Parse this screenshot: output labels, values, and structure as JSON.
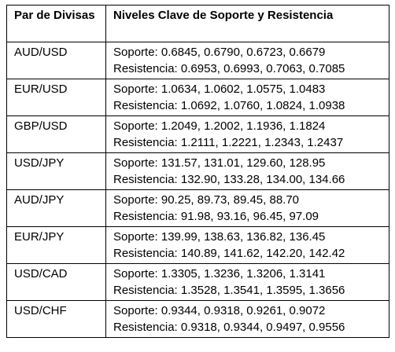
{
  "header": {
    "pair_label": "Par de Divisas",
    "levels_label": "Niveles Clave de Soporte y Resistencia"
  },
  "rows": [
    {
      "pair": "AUD/USD",
      "support": "Soporte: 0.6845, 0.6790, 0.6723, 0.6679",
      "resistance": "Resistencia: 0.6953, 0.6993, 0.7063, 0.7085"
    },
    {
      "pair": "EUR/USD",
      "support": "Soporte: 1.0634, 1.0602, 1.0575, 1.0483",
      "resistance": "Resistencia: 1.0692, 1.0760, 1.0824, 1.0938"
    },
    {
      "pair": "GBP/USD",
      "support": "Soporte: 1.2049, 1.2002, 1.1936, 1.1824",
      "resistance": "Resistencia: 1.2111, 1.2221, 1.2343, 1.2437"
    },
    {
      "pair": "USD/JPY",
      "support": "Soporte: 131.57, 131.01, 129.60, 128.95",
      "resistance": "Resistencia: 132.90, 133.28, 134.00, 134.66"
    },
    {
      "pair": "AUD/JPY",
      "support": "Soporte: 90.25, 89.73, 89.45, 88.70",
      "resistance": "Resistencia: 91.98, 93.16, 96.45, 97.09"
    },
    {
      "pair": "EUR/JPY",
      "support": "Soporte: 139.99, 138.63, 136.82, 136.45",
      "resistance": "Resistencia: 140.89, 141.62, 142.20, 142.42"
    },
    {
      "pair": "USD/CAD",
      "support": "Soporte: 1.3305, 1.3236, 1.3206, 1.3141",
      "resistance": "Resistencia: 1.3528, 1.3541, 1.3595, 1.3656"
    },
    {
      "pair": "USD/CHF",
      "support": "Soporte: 0.9344, 0.9318, 0.9261, 0.9072",
      "resistance": "Resistencia: 0.9318, 0.9344, 0.9497, 0.9556"
    }
  ]
}
